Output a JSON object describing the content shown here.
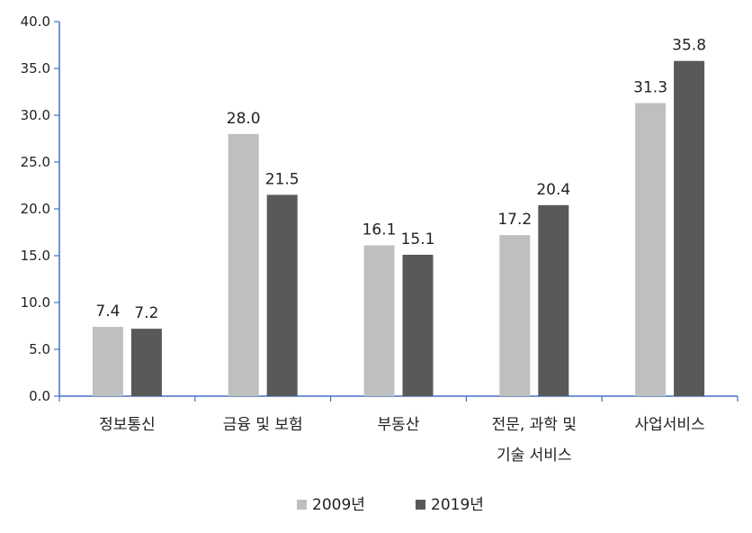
{
  "chart_data": {
    "type": "bar",
    "title": "",
    "xlabel": "",
    "ylabel": "",
    "ylim": [
      0,
      40
    ],
    "ytick_labels": [
      "0.0",
      "5.0",
      "10.0",
      "15.0",
      "20.0",
      "25.0",
      "30.0",
      "35.0",
      "40.0"
    ],
    "categories": [
      [
        "정보통신"
      ],
      [
        "금융 및 보험"
      ],
      [
        "부동산"
      ],
      [
        "전문, 과학 및",
        "기술 서비스"
      ],
      [
        "사업서비스"
      ]
    ],
    "series": [
      {
        "name": "2009년",
        "color": "#bfbfbf",
        "values": [
          7.4,
          28.0,
          16.1,
          17.2,
          31.3
        ],
        "labels": [
          "7.4",
          "28.0",
          "16.1",
          "17.2",
          "31.3"
        ]
      },
      {
        "name": "2019년",
        "color": "#595959",
        "values": [
          7.2,
          21.5,
          15.1,
          20.4,
          35.8
        ],
        "labels": [
          "7.2",
          "21.5",
          "15.1",
          "20.4",
          "35.8"
        ]
      }
    ],
    "grid": false,
    "legend_position": "bottom",
    "axis_color": "#4472c4"
  }
}
